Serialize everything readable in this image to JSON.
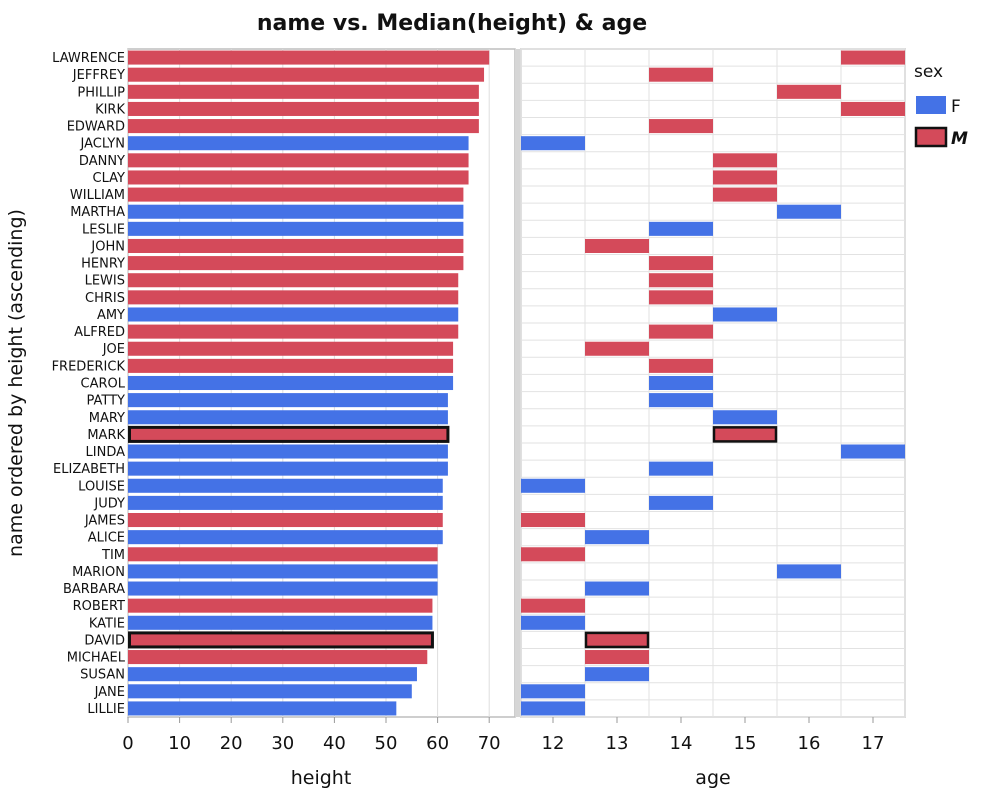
{
  "chart_data": {
    "type": "bar",
    "title": "name vs. Median(height) & age",
    "ylabel": "name ordered by height (ascending)",
    "legend": {
      "title": "sex",
      "placement": "right",
      "entries": [
        {
          "key": "F",
          "label": "F",
          "color": "#4472e6"
        },
        {
          "key": "M",
          "label": "M",
          "color": "#d44a5a"
        }
      ]
    },
    "highlighted": [
      "MARK",
      "DAVID"
    ],
    "names": [
      "LAWRENCE",
      "JEFFREY",
      "PHILLIP",
      "KIRK",
      "EDWARD",
      "JACLYN",
      "DANNY",
      "CLAY",
      "WILLIAM",
      "MARTHA",
      "LESLIE",
      "JOHN",
      "HENRY",
      "LEWIS",
      "CHRIS",
      "AMY",
      "ALFRED",
      "JOE",
      "FREDERICK",
      "CAROL",
      "PATTY",
      "MARY",
      "MARK",
      "LINDA",
      "ELIZABETH",
      "LOUISE",
      "JUDY",
      "JAMES",
      "ALICE",
      "TIM",
      "MARION",
      "BARBARA",
      "ROBERT",
      "KATIE",
      "DAVID",
      "MICHAEL",
      "SUSAN",
      "JANE",
      "LILLIE"
    ],
    "sex": [
      "M",
      "M",
      "M",
      "M",
      "M",
      "F",
      "M",
      "M",
      "M",
      "F",
      "F",
      "M",
      "M",
      "M",
      "M",
      "F",
      "M",
      "M",
      "M",
      "F",
      "F",
      "F",
      "M",
      "F",
      "F",
      "F",
      "F",
      "M",
      "F",
      "M",
      "F",
      "F",
      "M",
      "F",
      "M",
      "M",
      "F",
      "F",
      "F"
    ],
    "height_panel": {
      "xlabel": "height",
      "xlim": [
        0,
        75
      ],
      "xticks": [
        0,
        10,
        20,
        30,
        40,
        50,
        60,
        70
      ],
      "values": [
        70,
        69,
        68,
        68,
        68,
        66,
        66,
        66,
        65,
        65,
        65,
        65,
        65,
        64,
        64,
        64,
        64,
        63,
        63,
        63,
        62,
        62,
        62,
        62,
        62,
        61,
        61,
        61,
        61,
        60,
        60,
        60,
        59,
        59,
        59,
        58,
        56,
        55,
        52
      ]
    },
    "age_panel": {
      "xlabel": "age",
      "xlim": [
        11.5,
        17.5
      ],
      "xticks": [
        12,
        13,
        14,
        15,
        16,
        17
      ],
      "values": [
        17,
        14,
        16,
        17,
        14,
        12,
        15,
        15,
        15,
        16,
        14,
        13,
        14,
        14,
        14,
        15,
        14,
        13,
        14,
        14,
        14,
        15,
        15,
        17,
        14,
        12,
        14,
        12,
        13,
        12,
        16,
        13,
        12,
        12,
        13,
        13,
        13,
        12,
        12
      ]
    }
  }
}
